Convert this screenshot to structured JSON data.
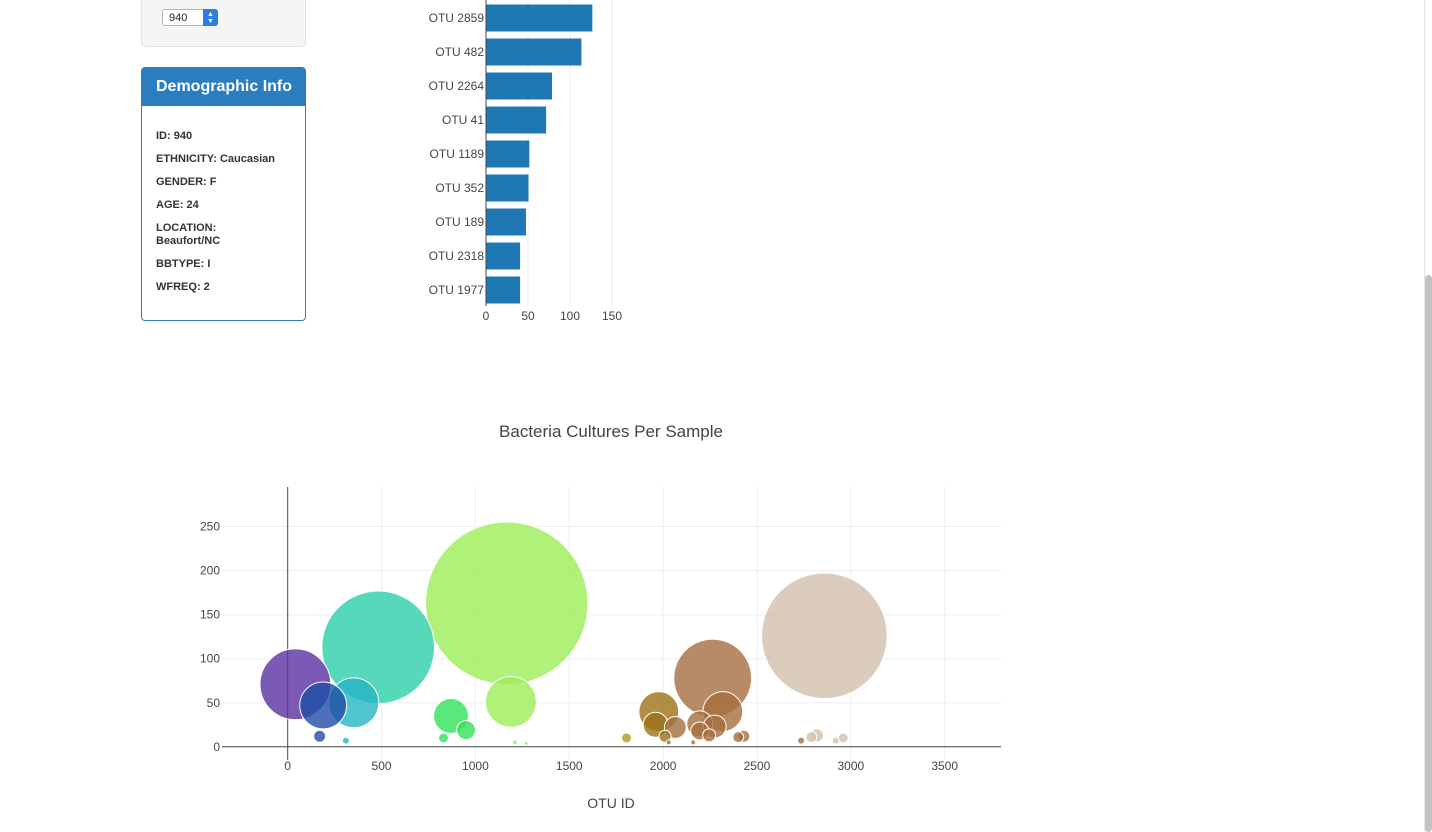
{
  "selector": {
    "value": "940"
  },
  "demographics": {
    "title": "Demographic Info",
    "lines": [
      "ID: 940",
      "ETHNICITY: Caucasian",
      "GENDER: F",
      "AGE: 24",
      "LOCATION: Beaufort/NC",
      "BBTYPE: I",
      "WFREQ: 2"
    ]
  },
  "chart_data": [
    {
      "type": "bar",
      "orientation": "horizontal",
      "categories": [
        "OTU 2859",
        "OTU 482",
        "OTU 2264",
        "OTU 41",
        "OTU 1189",
        "OTU 352",
        "OTU 189",
        "OTU 2318",
        "OTU 1977"
      ],
      "values": [
        126,
        113,
        78,
        71,
        51,
        50,
        47,
        40,
        40
      ],
      "xticks": [
        "0",
        "50",
        "100",
        "150"
      ],
      "xlim": [
        0,
        160
      ],
      "color": "#1f77b4",
      "grid": true
    },
    {
      "type": "scatter",
      "subtype": "bubble",
      "title": "Bacteria Cultures Per Sample",
      "xlabel": "OTU ID",
      "ylabel": "",
      "xlim": [
        -350,
        3800
      ],
      "ylim": [
        -15,
        295
      ],
      "xticks": [
        "0",
        "500",
        "1000",
        "1500",
        "2000",
        "2500",
        "3000",
        "3500"
      ],
      "yticks": [
        "0",
        "50",
        "100",
        "150",
        "200",
        "250"
      ],
      "grid": true,
      "points": [
        {
          "x": 41,
          "y": 71,
          "color": "#5a31a3"
        },
        {
          "x": 482,
          "y": 113,
          "color": "#2cceaa"
        },
        {
          "x": 1167,
          "y": 163,
          "color": "#9cee57"
        },
        {
          "x": 2859,
          "y": 126,
          "color": "#d3bfae"
        },
        {
          "x": 2264,
          "y": 78,
          "color": "#a56e3f"
        },
        {
          "x": 189,
          "y": 47,
          "color": "#1f4ea6"
        },
        {
          "x": 352,
          "y": 50,
          "color": "#24b5c4"
        },
        {
          "x": 1189,
          "y": 51,
          "color": "#9cee57"
        },
        {
          "x": 870,
          "y": 35,
          "color": "#31e25a"
        },
        {
          "x": 950,
          "y": 19,
          "color": "#31e25a"
        },
        {
          "x": 1977,
          "y": 40,
          "color": "#9c7216"
        },
        {
          "x": 2318,
          "y": 40,
          "color": "#a56e3f"
        },
        {
          "x": 1960,
          "y": 25,
          "color": "#9c7216"
        },
        {
          "x": 2065,
          "y": 22,
          "color": "#a56e3f"
        },
        {
          "x": 2195,
          "y": 26,
          "color": "#a56e3f"
        },
        {
          "x": 2275,
          "y": 23,
          "color": "#a56e3f"
        },
        {
          "x": 2195,
          "y": 18,
          "color": "#a56e3f"
        },
        {
          "x": 2010,
          "y": 12,
          "color": "#9c7216"
        },
        {
          "x": 2245,
          "y": 13,
          "color": "#a56e3f"
        },
        {
          "x": 2430,
          "y": 12,
          "color": "#a56e3f"
        },
        {
          "x": 2400,
          "y": 11,
          "color": "#a56e3f"
        },
        {
          "x": 1805,
          "y": 10,
          "color": "#b59420"
        },
        {
          "x": 170,
          "y": 12,
          "color": "#1f4ea6"
        },
        {
          "x": 310,
          "y": 7,
          "color": "#24b5c4"
        },
        {
          "x": 830,
          "y": 10,
          "color": "#31e25a"
        },
        {
          "x": 2820,
          "y": 13,
          "color": "#d3bfae"
        },
        {
          "x": 2790,
          "y": 11,
          "color": "#d3bfae"
        },
        {
          "x": 2960,
          "y": 10,
          "color": "#d3bfae"
        },
        {
          "x": 2920,
          "y": 7,
          "color": "#d3bfae"
        },
        {
          "x": 2735,
          "y": 7,
          "color": "#a56e3f"
        },
        {
          "x": 1210,
          "y": 5,
          "color": "#9cee57"
        },
        {
          "x": 1270,
          "y": 4,
          "color": "#9cee57"
        },
        {
          "x": 2030,
          "y": 5,
          "color": "#9c7216"
        },
        {
          "x": 2160,
          "y": 5,
          "color": "#a56e3f"
        }
      ]
    }
  ]
}
